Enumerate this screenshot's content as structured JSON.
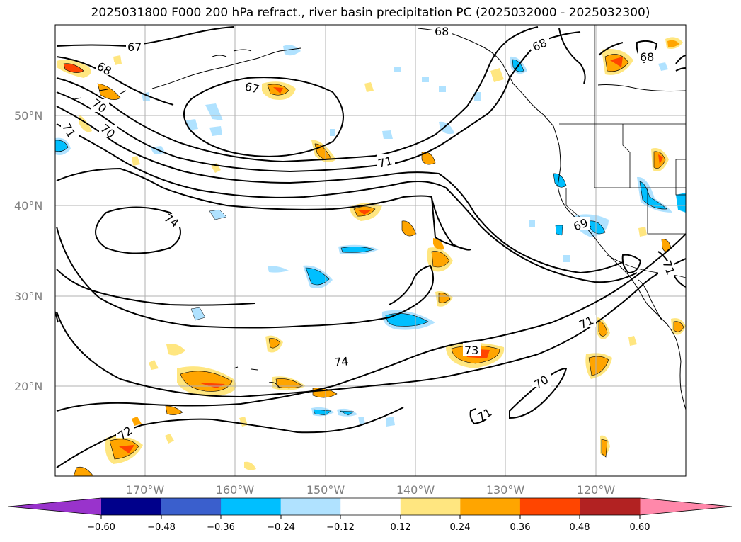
{
  "title": "2025031800 F000 200 hPa refract., river basin precipitation PC (2025032000 - 2025032300)",
  "map": {
    "lat_range": [
      10,
      60
    ],
    "lon_range": [
      -180,
      -110
    ],
    "lat_ticks": [
      "50°N",
      "40°N",
      "30°N",
      "20°N"
    ],
    "lon_ticks": [
      "170°W",
      "160°W",
      "150°W",
      "140°W",
      "130°W",
      "120°W"
    ],
    "gridline_color": "#b0b0b0",
    "contour_labels": [
      "67",
      "67",
      "68",
      "68",
      "68",
      "68",
      "69",
      "70",
      "70",
      "70",
      "71",
      "71",
      "71",
      "71",
      "71",
      "72",
      "73",
      "74",
      "74"
    ]
  },
  "colorbar": {
    "ticks": [
      "−0.60",
      "−0.48",
      "−0.36",
      "−0.24",
      "−0.12",
      "0.12",
      "0.24",
      "0.36",
      "0.48",
      "0.60"
    ],
    "colors": [
      "#9933cc",
      "#00008b",
      "#3a5fcd",
      "#00bfff",
      "#b0e2ff",
      "#ffffff",
      "#ffe680",
      "#ffa500",
      "#ff4500",
      "#b22222",
      "#ff88aa"
    ]
  }
}
